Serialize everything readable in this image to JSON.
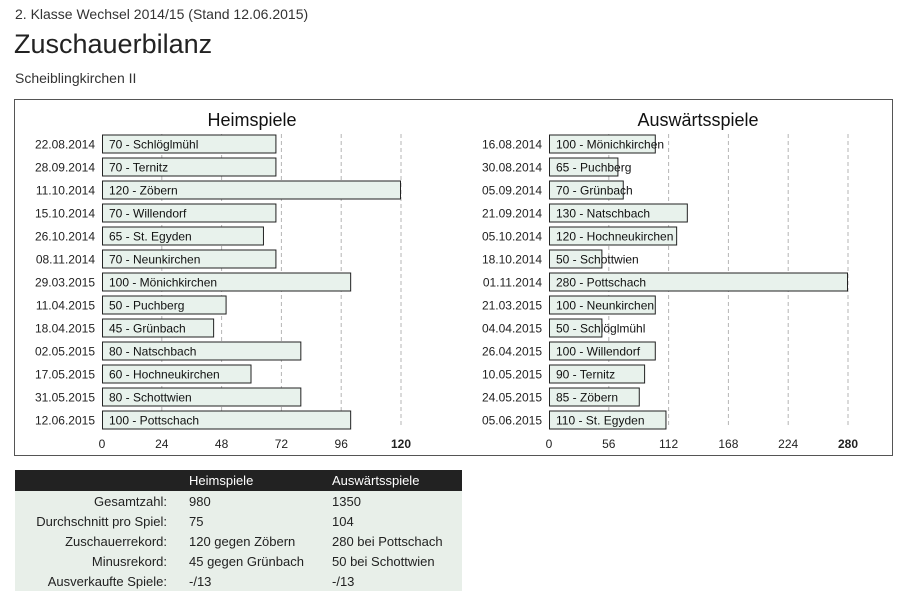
{
  "header": {
    "league": "2. Klasse Wechsel 2014/15 (Stand 12.06.2015)",
    "title": "Zuschauerbilanz",
    "team": "Scheiblingkirchen II"
  },
  "chart_data": [
    {
      "type": "bar",
      "orientation": "horizontal",
      "title": "Heimspiele",
      "xlim": [
        0,
        120
      ],
      "ticks": [
        0,
        24,
        48,
        72,
        96,
        120
      ],
      "grid": true,
      "rows": [
        {
          "date": "22.08.2014",
          "value": 70,
          "opponent": "Schlöglmühl",
          "label": "70 - Schlöglmühl"
        },
        {
          "date": "28.09.2014",
          "value": 70,
          "opponent": "Ternitz",
          "label": "70 - Ternitz"
        },
        {
          "date": "11.10.2014",
          "value": 120,
          "opponent": "Zöbern",
          "label": "120 - Zöbern"
        },
        {
          "date": "15.10.2014",
          "value": 70,
          "opponent": "Willendorf",
          "label": "70 - Willendorf"
        },
        {
          "date": "26.10.2014",
          "value": 65,
          "opponent": "St. Egyden",
          "label": "65 - St. Egyden"
        },
        {
          "date": "08.11.2014",
          "value": 70,
          "opponent": "Neunkirchen",
          "label": "70 - Neunkirchen"
        },
        {
          "date": "29.03.2015",
          "value": 100,
          "opponent": "Mönichkirchen",
          "label": "100 - Mönichkirchen"
        },
        {
          "date": "11.04.2015",
          "value": 50,
          "opponent": "Puchberg",
          "label": "50 - Puchberg"
        },
        {
          "date": "18.04.2015",
          "value": 45,
          "opponent": "Grünbach",
          "label": "45 - Grünbach"
        },
        {
          "date": "02.05.2015",
          "value": 80,
          "opponent": "Natschbach",
          "label": "80 - Natschbach"
        },
        {
          "date": "17.05.2015",
          "value": 60,
          "opponent": "Hochneukirchen",
          "label": "60 - Hochneukirchen"
        },
        {
          "date": "31.05.2015",
          "value": 80,
          "opponent": "Schottwien",
          "label": "80 - Schottwien"
        },
        {
          "date": "12.06.2015",
          "value": 100,
          "opponent": "Pottschach",
          "label": "100 - Pottschach"
        }
      ]
    },
    {
      "type": "bar",
      "orientation": "horizontal",
      "title": "Auswärtsspiele",
      "xlim": [
        0,
        280
      ],
      "ticks": [
        0,
        56,
        112,
        168,
        224,
        280
      ],
      "grid": true,
      "rows": [
        {
          "date": "16.08.2014",
          "value": 100,
          "opponent": "Mönichkirchen",
          "label": "100 - Mönichkirchen"
        },
        {
          "date": "30.08.2014",
          "value": 65,
          "opponent": "Puchberg",
          "label": "65 - Puchberg"
        },
        {
          "date": "05.09.2014",
          "value": 70,
          "opponent": "Grünbach",
          "label": "70 - Grünbach"
        },
        {
          "date": "21.09.2014",
          "value": 130,
          "opponent": "Natschbach",
          "label": "130 - Natschbach"
        },
        {
          "date": "05.10.2014",
          "value": 120,
          "opponent": "Hochneukirchen",
          "label": "120 - Hochneukirchen"
        },
        {
          "date": "18.10.2014",
          "value": 50,
          "opponent": "Schottwien",
          "label": "50 - Schottwien"
        },
        {
          "date": "01.11.2014",
          "value": 280,
          "opponent": "Pottschach",
          "label": "280 - Pottschach"
        },
        {
          "date": "21.03.2015",
          "value": 100,
          "opponent": "Neunkirchen",
          "label": "100 - Neunkirchen"
        },
        {
          "date": "04.04.2015",
          "value": 50,
          "opponent": "Schlöglmühl",
          "label": "50 - Schlöglmühl"
        },
        {
          "date": "26.04.2015",
          "value": 100,
          "opponent": "Willendorf",
          "label": "100 - Willendorf"
        },
        {
          "date": "10.05.2015",
          "value": 90,
          "opponent": "Ternitz",
          "label": "90 - Ternitz"
        },
        {
          "date": "24.05.2015",
          "value": 85,
          "opponent": "Zöbern",
          "label": "85 - Zöbern"
        },
        {
          "date": "05.06.2015",
          "value": 110,
          "opponent": "St. Egyden",
          "label": "110 - St. Egyden"
        }
      ]
    }
  ],
  "colors": {
    "bar_fill": "#e8f2ec",
    "bar_stroke": "#222222",
    "grid": "#b5b5b5",
    "table_header_bg": "#222222",
    "table_body_bg": "#e8efe9"
  },
  "stats_table": {
    "columns": [
      "",
      "Heimspiele",
      "Auswärtsspiele"
    ],
    "rows": [
      {
        "label": "Gesamtzahl:",
        "home": "980",
        "away": "1350"
      },
      {
        "label": "Durchschnitt pro Spiel:",
        "home": "75",
        "away": "104"
      },
      {
        "label": "Zuschauerrekord:",
        "home": "120 gegen Zöbern",
        "away": "280 bei Pottschach"
      },
      {
        "label": "Minusrekord:",
        "home": "45 gegen Grünbach",
        "away": "50 bei Schottwien"
      },
      {
        "label": "Ausverkaufte Spiele:",
        "home": "-/13",
        "away": "-/13"
      }
    ]
  }
}
